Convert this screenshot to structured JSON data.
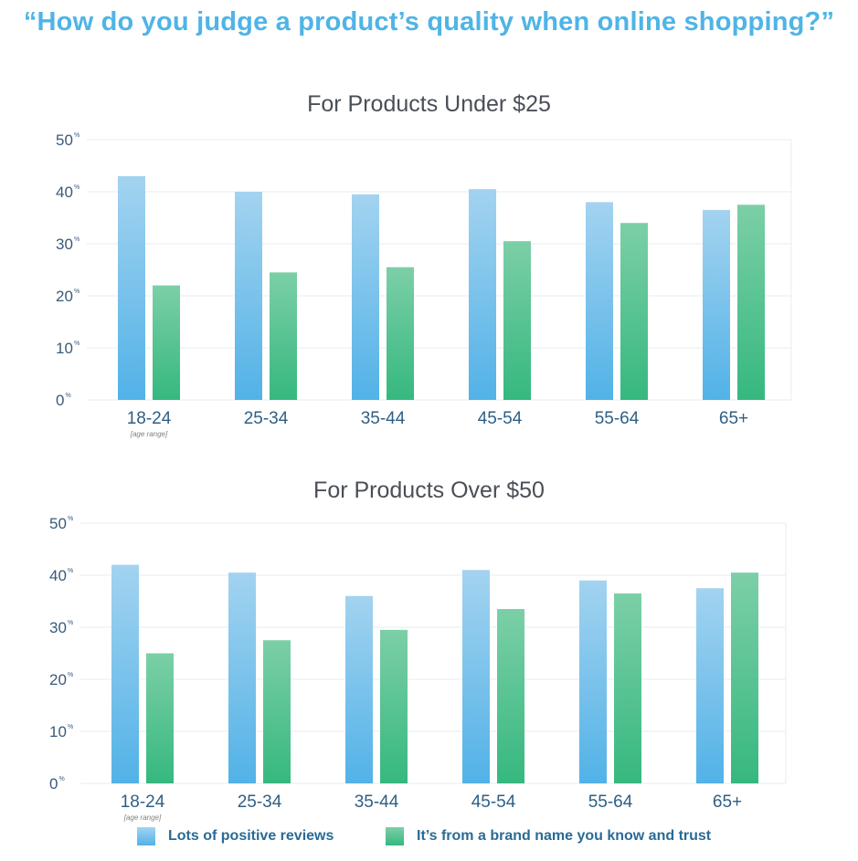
{
  "headline": "“How do you judge a product’s quality when online shopping?”",
  "colors": {
    "reviews_top": "#a3d3f0",
    "reviews_bottom": "#52b2e7",
    "brand_top": "#7ccfa7",
    "brand_bottom": "#36b87f",
    "grid": "#e6edf2",
    "axis_text": "#3a5a7a"
  },
  "legend": {
    "reviews_icon": "blue-square",
    "brand_icon": "green-square"
  },
  "chart_data": [
    {
      "type": "bar",
      "title": "For Products Under $25",
      "categories": [
        "18-24",
        "25-34",
        "35-44",
        "45-54",
        "55-64",
        "65+"
      ],
      "category_note": "[age range]",
      "ylim": [
        0,
        50
      ],
      "yticks": [
        "0",
        "10",
        "20",
        "30",
        "40",
        "50"
      ],
      "ytick_suffix": "%",
      "grid": true,
      "legend_position": "bottom",
      "series": [
        {
          "name": "Lots of positive reviews",
          "values": [
            43,
            40,
            39.5,
            40.5,
            38,
            36.5
          ]
        },
        {
          "name": "It’s from a brand name you know and trust",
          "values": [
            22,
            24.5,
            25.5,
            30.5,
            34,
            37.5
          ]
        }
      ]
    },
    {
      "type": "bar",
      "title": "For Products Over $50",
      "categories": [
        "18-24",
        "25-34",
        "35-44",
        "45-54",
        "55-64",
        "65+"
      ],
      "category_note": "[age range]",
      "ylim": [
        0,
        50
      ],
      "yticks": [
        "0",
        "10",
        "20",
        "30",
        "40",
        "50"
      ],
      "ytick_suffix": "%",
      "grid": true,
      "legend_position": "bottom",
      "series": [
        {
          "name": "Lots of positive reviews",
          "values": [
            42,
            40.5,
            36,
            41,
            39,
            37.5
          ]
        },
        {
          "name": "It’s from a brand name you know and trust",
          "values": [
            25,
            27.5,
            29.5,
            33.5,
            36.5,
            40.5
          ]
        }
      ]
    }
  ]
}
